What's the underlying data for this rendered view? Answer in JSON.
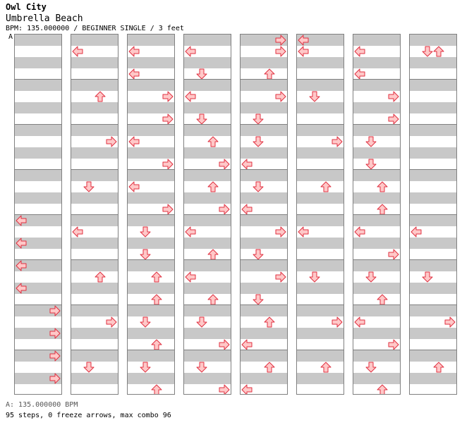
{
  "header": {
    "artist": "Owl City",
    "title": "Umbrella Beach",
    "info": "BPM: 135.000000 / BEGINNER SINGLE / 3 feet",
    "marker": "A"
  },
  "footer": {
    "bpm_line": "A: 135.000000 BPM",
    "stats_line": "95 steps, 0 freeze arrows, max combo 96"
  },
  "colors": {
    "arrow_fill": "#ffc8c8",
    "arrow_stroke": "#e03040",
    "stripe": "#c8c8c8",
    "border": "#808080"
  },
  "chart": {
    "columns": 8,
    "measures_per_column": 8,
    "rows_per_measure": 4,
    "lane_order": [
      "left",
      "down",
      "up",
      "right"
    ],
    "notes": [
      [
        [],
        [],
        [],
        [],
        [
          [
            "left",
            0
          ],
          [
            "left",
            2
          ]
        ],
        [
          [
            "left",
            0
          ],
          [
            "left",
            2
          ]
        ],
        [
          [
            "right",
            0
          ],
          [
            "right",
            2
          ]
        ],
        [
          [
            "right",
            0
          ],
          [
            "right",
            2
          ]
        ]
      ],
      [
        [
          [
            "left",
            1
          ]
        ],
        [
          [
            "up",
            1
          ]
        ],
        [
          [
            "right",
            1
          ]
        ],
        [
          [
            "down",
            1
          ]
        ],
        [
          [
            "left",
            1
          ]
        ],
        [
          [
            "up",
            1
          ]
        ],
        [
          [
            "right",
            1
          ]
        ],
        [
          [
            "down",
            1
          ]
        ]
      ],
      [
        [
          [
            "left",
            1
          ],
          [
            "left",
            3
          ]
        ],
        [
          [
            "right",
            1
          ],
          [
            "right",
            3
          ]
        ],
        [
          [
            "left",
            1
          ],
          [
            "right",
            3
          ]
        ],
        [
          [
            "left",
            1
          ],
          [
            "right",
            3
          ]
        ],
        [
          [
            "down",
            1
          ],
          [
            "down",
            3
          ]
        ],
        [
          [
            "up",
            1
          ],
          [
            "up",
            3
          ]
        ],
        [
          [
            "down",
            1
          ],
          [
            "up",
            3
          ]
        ],
        [
          [
            "down",
            1
          ],
          [
            "up",
            3
          ]
        ]
      ],
      [
        [
          [
            "left",
            1
          ],
          [
            "down",
            3
          ]
        ],
        [
          [
            "left",
            1
          ],
          [
            "down",
            3
          ]
        ],
        [
          [
            "up",
            1
          ],
          [
            "right",
            3
          ]
        ],
        [
          [
            "up",
            1
          ],
          [
            "right",
            3
          ]
        ],
        [
          [
            "left",
            1
          ],
          [
            "up",
            3
          ]
        ],
        [
          [
            "left",
            1
          ],
          [
            "up",
            3
          ]
        ],
        [
          [
            "down",
            1
          ],
          [
            "right",
            3
          ]
        ],
        [
          [
            "down",
            1
          ],
          [
            "right",
            3
          ]
        ]
      ],
      [
        [
          [
            "right",
            0
          ],
          [
            "right",
            1
          ],
          [
            "up",
            3
          ]
        ],
        [
          [
            "right",
            1
          ],
          [
            "down",
            3
          ]
        ],
        [
          [
            "down",
            1
          ],
          [
            "left",
            3
          ]
        ],
        [
          [
            "down",
            1
          ],
          [
            "left",
            3
          ]
        ],
        [
          [
            "right",
            1
          ],
          [
            "down",
            3
          ]
        ],
        [
          [
            "right",
            1
          ],
          [
            "down",
            3
          ]
        ],
        [
          [
            "up",
            1
          ],
          [
            "left",
            3
          ]
        ],
        [
          [
            "up",
            1
          ],
          [
            "left",
            3
          ]
        ]
      ],
      [
        [
          [
            "left",
            0
          ],
          [
            "left",
            1
          ]
        ],
        [
          [
            "down",
            1
          ]
        ],
        [
          [
            "right",
            1
          ]
        ],
        [
          [
            "up",
            1
          ]
        ],
        [
          [
            "left",
            1
          ]
        ],
        [
          [
            "down",
            1
          ]
        ],
        [
          [
            "right",
            1
          ]
        ],
        [
          [
            "up",
            1
          ]
        ]
      ],
      [
        [
          [
            "left",
            1
          ],
          [
            "left",
            3
          ]
        ],
        [
          [
            "right",
            1
          ],
          [
            "right",
            3
          ]
        ],
        [
          [
            "down",
            1
          ],
          [
            "down",
            3
          ]
        ],
        [
          [
            "up",
            1
          ],
          [
            "up",
            3
          ]
        ],
        [
          [
            "left",
            1
          ],
          [
            "right",
            3
          ]
        ],
        [
          [
            "down",
            1
          ],
          [
            "up",
            3
          ]
        ],
        [
          [
            "left",
            1
          ],
          [
            "right",
            3
          ]
        ],
        [
          [
            "down",
            1
          ],
          [
            "up",
            3
          ]
        ]
      ],
      [
        [
          [
            "down",
            1
          ],
          [
            "up",
            1
          ]
        ],
        [],
        [],
        [],
        [
          [
            "left",
            1
          ]
        ],
        [
          [
            "down",
            1
          ]
        ],
        [
          [
            "right",
            1
          ]
        ],
        [
          [
            "up",
            1
          ]
        ]
      ]
    ]
  }
}
